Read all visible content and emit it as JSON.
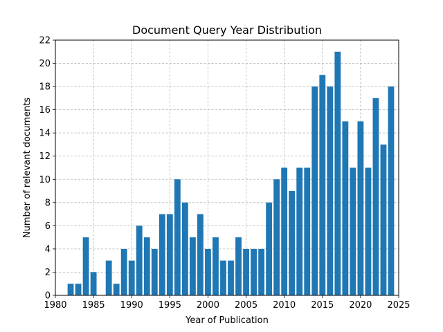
{
  "chart_data": {
    "type": "bar",
    "title": "Document Query Year Distribution",
    "xlabel": "Year of Publication",
    "ylabel": "Number of relevant documents",
    "xlim": [
      1980,
      2025
    ],
    "ylim": [
      0,
      22
    ],
    "xticks": [
      1980,
      1985,
      1990,
      1995,
      2000,
      2005,
      2010,
      2015,
      2020,
      2025
    ],
    "yticks": [
      0,
      2,
      4,
      6,
      8,
      10,
      12,
      14,
      16,
      18,
      20,
      22
    ],
    "grid": true,
    "bar_color": "#1f77b4",
    "x": [
      1982,
      1983,
      1984,
      1985,
      1987,
      1988,
      1989,
      1990,
      1991,
      1992,
      1993,
      1994,
      1995,
      1996,
      1997,
      1998,
      1999,
      2000,
      2001,
      2002,
      2003,
      2004,
      2005,
      2006,
      2007,
      2008,
      2009,
      2010,
      2011,
      2012,
      2013,
      2014,
      2015,
      2016,
      2017,
      2018,
      2019,
      2020,
      2021,
      2022,
      2023,
      2024
    ],
    "values": [
      1,
      1,
      5,
      2,
      3,
      1,
      4,
      3,
      6,
      5,
      4,
      7,
      7,
      10,
      8,
      5,
      7,
      4,
      5,
      3,
      3,
      5,
      4,
      4,
      4,
      8,
      10,
      11,
      9,
      11,
      11,
      18,
      19,
      18,
      21,
      15,
      11,
      15,
      11,
      17,
      13,
      18
    ]
  }
}
